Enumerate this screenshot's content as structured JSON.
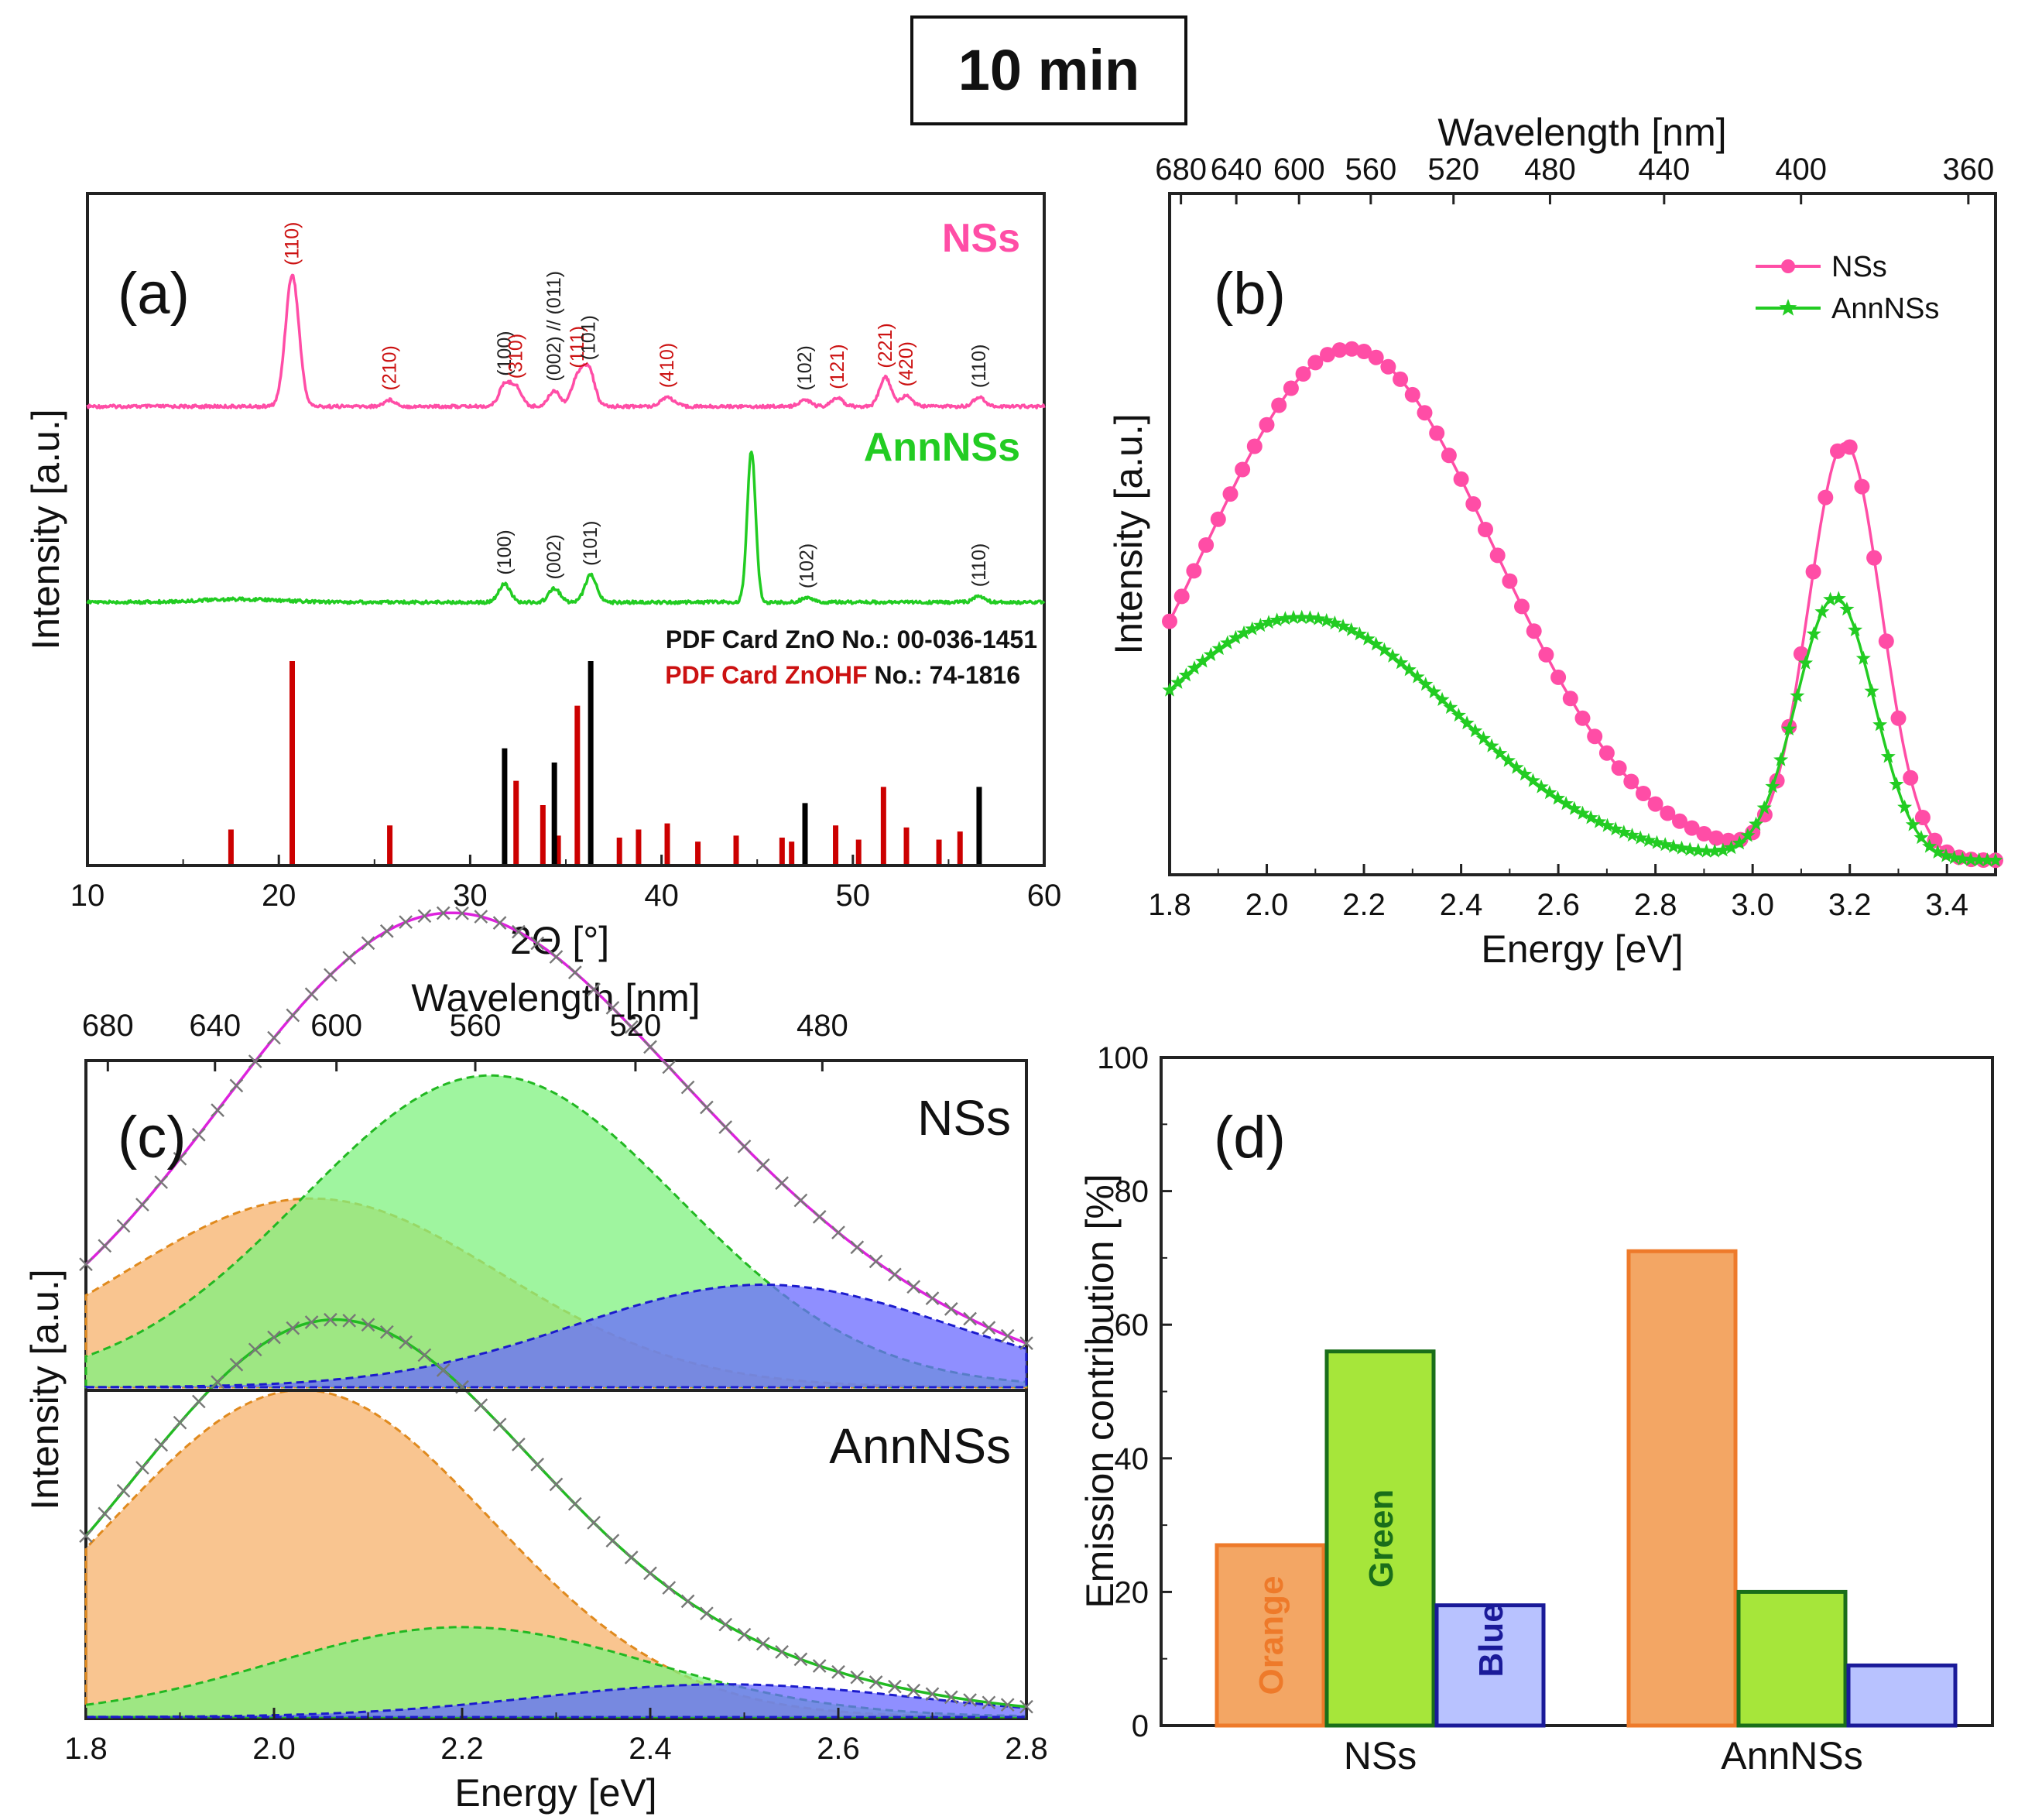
{
  "figure_title": "10 min",
  "chart_data": [
    {
      "panel": "(a)",
      "type": "line",
      "xlabel": "2Θ [°]",
      "ylabel": "Intensity [a.u.]",
      "xlim": [
        10,
        60
      ],
      "xticks": [
        "10",
        "20",
        "30",
        "40",
        "50",
        "60"
      ],
      "series": [
        {
          "name": "NSs",
          "color": "#ff4da6",
          "peaks": [
            {
              "x": 20.7,
              "h": 1.0,
              "w": 0.35,
              "label": "(110)",
              "lc": "#cc1111"
            },
            {
              "x": 25.8,
              "h": 0.05,
              "w": 0.3,
              "label": "(210)",
              "lc": "#cc1111"
            },
            {
              "x": 31.8,
              "h": 0.16,
              "w": 0.3,
              "label": "(100)",
              "lc": "#222222"
            },
            {
              "x": 32.4,
              "h": 0.14,
              "w": 0.3,
              "label": "(310)",
              "lc": "#cc1111"
            },
            {
              "x": 34.4,
              "h": 0.12,
              "w": 0.3,
              "label": "(002) // (011)",
              "lc": "#222222"
            },
            {
              "x": 35.6,
              "h": 0.22,
              "w": 0.3,
              "label": "(111)",
              "lc": "#cc1111"
            },
            {
              "x": 36.2,
              "h": 0.28,
              "w": 0.3,
              "label": "(101)",
              "lc": "#222222"
            },
            {
              "x": 40.3,
              "h": 0.07,
              "w": 0.35,
              "label": "(410)",
              "lc": "#cc1111"
            },
            {
              "x": 47.5,
              "h": 0.05,
              "w": 0.3,
              "label": "(102)",
              "lc": "#222222"
            },
            {
              "x": 49.2,
              "h": 0.06,
              "w": 0.3,
              "label": "(121)",
              "lc": "#cc1111"
            },
            {
              "x": 51.7,
              "h": 0.22,
              "w": 0.3,
              "label": "(221)",
              "lc": "#cc1111"
            },
            {
              "x": 52.8,
              "h": 0.08,
              "w": 0.3,
              "label": "(420)",
              "lc": "#cc1111"
            },
            {
              "x": 56.6,
              "h": 0.07,
              "w": 0.3,
              "label": "(110)",
              "lc": "#222222"
            }
          ]
        },
        {
          "name": "AnnNSs",
          "color": "#22cc22",
          "peaks": [
            {
              "x": 31.8,
              "h": 0.12,
              "w": 0.3,
              "label": "(100)",
              "lc": "#222222"
            },
            {
              "x": 34.4,
              "h": 0.09,
              "w": 0.3,
              "label": "(002)",
              "lc": "#222222"
            },
            {
              "x": 36.3,
              "h": 0.18,
              "w": 0.3,
              "label": "(101)",
              "lc": "#222222"
            },
            {
              "x": 44.7,
              "h": 1.0,
              "w": 0.22,
              "label": "",
              "lc": "#222222"
            },
            {
              "x": 47.6,
              "h": 0.03,
              "w": 0.3,
              "label": "(102)",
              "lc": "#222222"
            },
            {
              "x": 56.6,
              "h": 0.04,
              "w": 0.3,
              "label": "(110)",
              "lc": "#222222"
            }
          ]
        }
      ],
      "reference_zno": {
        "label": "PDF Card ZnO No.: 00-036-1451",
        "color": "#000000",
        "lines": [
          [
            31.8,
            0.57
          ],
          [
            34.4,
            0.5
          ],
          [
            36.3,
            1.0
          ],
          [
            47.5,
            0.3
          ],
          [
            56.6,
            0.38
          ]
        ]
      },
      "reference_znohf": {
        "label_prefix": "PDF Card ZnOHF",
        "label_suffix": " No.: 74-1816",
        "color": "#cc0000",
        "lines": [
          [
            17.5,
            0.17
          ],
          [
            20.7,
            1.0
          ],
          [
            25.8,
            0.19
          ],
          [
            32.4,
            0.41
          ],
          [
            33.8,
            0.29
          ],
          [
            34.6,
            0.14
          ],
          [
            35.6,
            0.78
          ],
          [
            37.8,
            0.13
          ],
          [
            38.8,
            0.17
          ],
          [
            40.3,
            0.2
          ],
          [
            41.9,
            0.11
          ],
          [
            43.9,
            0.14
          ],
          [
            46.3,
            0.13
          ],
          [
            46.8,
            0.11
          ],
          [
            49.1,
            0.19
          ],
          [
            50.3,
            0.12
          ],
          [
            51.6,
            0.38
          ],
          [
            52.8,
            0.18
          ],
          [
            54.5,
            0.12
          ],
          [
            55.6,
            0.16
          ]
        ]
      }
    },
    {
      "panel": "(b)",
      "type": "line",
      "xlabel": "Energy [eV]",
      "ylabel": "Intensity [a.u.]",
      "top_axis_label": "Wavelength [nm]",
      "xlim": [
        1.8,
        3.5
      ],
      "xticks": [
        "1.8",
        "2.0",
        "2.2",
        "2.4",
        "2.6",
        "2.8",
        "3.0",
        "3.2",
        "3.4"
      ],
      "top_ticks": [
        "680",
        "640",
        "600",
        "560",
        "520",
        "480",
        "440",
        "400",
        "360"
      ],
      "series": [
        {
          "name": "NSs",
          "color": "#ff4da6",
          "marker": "circle",
          "baseline": 0.02,
          "components": [
            {
              "center": 2.17,
              "height": 0.8,
              "sigma": 0.3
            },
            {
              "center": 3.19,
              "height": 0.65,
              "sigma": 0.075
            }
          ]
        },
        {
          "name": "AnnNSs",
          "color": "#22cc22",
          "marker": "star",
          "baseline": 0.02,
          "components": [
            {
              "center": 2.07,
              "height": 0.38,
              "sigma": 0.32
            },
            {
              "center": 3.17,
              "height": 0.41,
              "sigma": 0.08
            }
          ]
        }
      ]
    },
    {
      "panel": "(c)",
      "type": "area",
      "xlabel": "Energy [eV]",
      "ylabel": "Intensity [a.u.]",
      "top_axis_label": "Wavelength [nm]",
      "xlim": [
        1.8,
        2.8
      ],
      "xticks": [
        "1.8",
        "2.0",
        "2.2",
        "2.4",
        "2.6",
        "2.8"
      ],
      "top_ticks": [
        "680",
        "640",
        "600",
        "560",
        "520",
        "480"
      ],
      "subplots": [
        {
          "name": "NSs",
          "fit_color": "#dd22dd",
          "components": [
            {
              "name": "Orange",
              "center": 2.04,
              "height": 0.46,
              "sigma": 0.2,
              "fill": "#f7b26b",
              "stroke": "#e08a1e"
            },
            {
              "name": "Green",
              "center": 2.23,
              "height": 0.76,
              "sigma": 0.2,
              "fill": "#7ff27f",
              "stroke": "#22b822"
            },
            {
              "name": "Blue",
              "center": 2.52,
              "height": 0.25,
              "sigma": 0.2,
              "fill": "#6a6aff",
              "stroke": "#1b1bcc"
            }
          ]
        },
        {
          "name": "AnnNSs",
          "fit_color": "#22bb22",
          "components": [
            {
              "name": "Orange",
              "center": 2.03,
              "height": 0.8,
              "sigma": 0.2,
              "fill": "#f7b26b",
              "stroke": "#e08a1e"
            },
            {
              "name": "Green",
              "center": 2.2,
              "height": 0.22,
              "sigma": 0.2,
              "fill": "#7ff27f",
              "stroke": "#22b822"
            },
            {
              "name": "Blue",
              "center": 2.48,
              "height": 0.08,
              "sigma": 0.2,
              "fill": "#6a6aff",
              "stroke": "#1b1bcc"
            }
          ]
        }
      ]
    },
    {
      "panel": "(d)",
      "type": "bar",
      "xlabel": "",
      "ylabel": "Emission contribution [%]",
      "ylim": [
        0,
        100
      ],
      "yticks": [
        "0",
        "20",
        "40",
        "60",
        "80",
        "100"
      ],
      "categories": [
        "NSs",
        "AnnNSs"
      ],
      "series": [
        {
          "name": "Orange",
          "values": [
            27,
            71
          ],
          "fill": "#f3a664",
          "stroke": "#ee7a2a",
          "label_color": "#ee7a2a"
        },
        {
          "name": "Green",
          "values": [
            56,
            20
          ],
          "fill": "#a6e63a",
          "stroke": "#1a6e1a",
          "label_color": "#1a6e1a"
        },
        {
          "name": "Blue",
          "values": [
            18,
            9
          ],
          "fill": "#b8c2ff",
          "stroke": "#1a1a99",
          "label_color": "#1a1a99"
        }
      ]
    }
  ]
}
